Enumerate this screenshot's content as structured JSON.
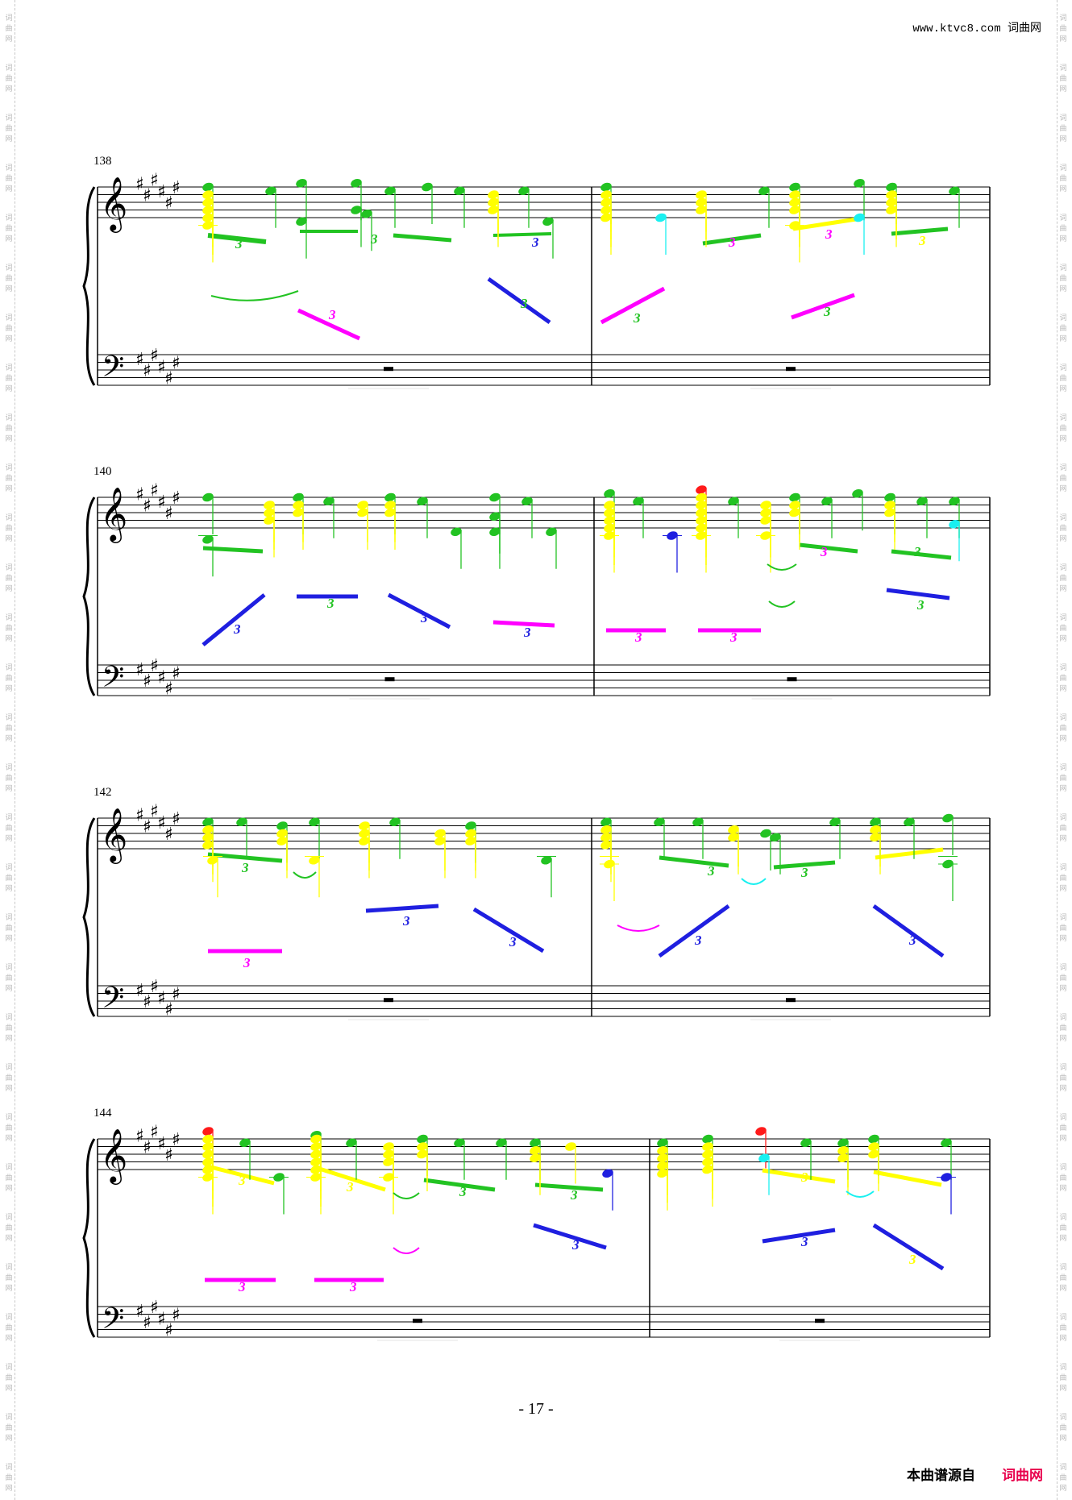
{
  "header": {
    "site_url": "www.ktvc8.com 词曲网"
  },
  "side_watermark": "词曲网",
  "colors": {
    "red": "#ff1a1a",
    "green": "#22c322",
    "yellow": "#ffff00",
    "magenta": "#ff00ff",
    "blue": "#1f1fe0",
    "cyan": "#19f0f0",
    "staff": "#000000"
  },
  "icons": {
    "treble": "treble-clef-icon",
    "bass": "bass-clef-icon",
    "brace": "grand-staff-brace-icon"
  },
  "key_signature": {
    "sharps": 6
  },
  "tuplet_label": "3",
  "systems": [
    {
      "measure_number": "138",
      "measures": 2
    },
    {
      "measure_number": "140",
      "measures": 2
    },
    {
      "measure_number": "142",
      "measures": 2
    },
    {
      "measure_number": "144",
      "measures": 2
    }
  ],
  "footer": {
    "page_number": "- 17 -",
    "source_label": "本曲谱源自",
    "brand": "词曲网"
  }
}
